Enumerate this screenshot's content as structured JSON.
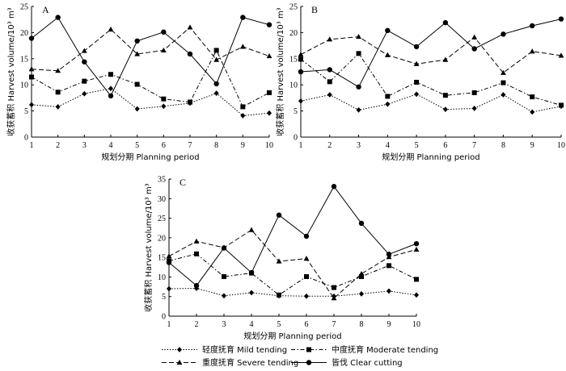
{
  "chart_data": [
    {
      "type": "line",
      "panel": "A",
      "x": [
        1,
        2,
        3,
        4,
        5,
        6,
        7,
        8,
        9,
        10
      ],
      "xlabel": "规划分期  Planning period",
      "ylabel": "收获蓄积 Harvest volume/10³ m³",
      "xlim": [
        1,
        10
      ],
      "ylim": [
        0,
        25
      ],
      "yticks": [
        0,
        5,
        10,
        15,
        20,
        25
      ],
      "series": [
        {
          "key": "mild",
          "values": [
            6.2,
            5.8,
            8.3,
            9.3,
            5.4,
            5.9,
            6.5,
            8.4,
            4.1,
            4.6
          ]
        },
        {
          "key": "moderate",
          "values": [
            11.5,
            8.6,
            10.7,
            12.0,
            10.1,
            7.3,
            6.7,
            16.6,
            5.8,
            8.5
          ]
        },
        {
          "key": "severe",
          "values": [
            13.0,
            12.7,
            16.5,
            20.6,
            15.9,
            16.6,
            21.0,
            14.8,
            17.3,
            15.5
          ]
        },
        {
          "key": "clear",
          "values": [
            18.9,
            22.9,
            14.4,
            7.9,
            18.4,
            20.1,
            15.9,
            10.2,
            22.9,
            21.5
          ]
        }
      ]
    },
    {
      "type": "line",
      "panel": "B",
      "x": [
        1,
        2,
        3,
        4,
        5,
        6,
        7,
        8,
        9,
        10
      ],
      "xlabel": "规划分期  Planning period",
      "ylabel": "收获蓄积 Harvest volume/10³ m³",
      "xlim": [
        1,
        10
      ],
      "ylim": [
        0,
        25
      ],
      "yticks": [
        0,
        5,
        10,
        15,
        20,
        25
      ],
      "series": [
        {
          "key": "mild",
          "values": [
            6.9,
            8.1,
            5.2,
            6.3,
            8.2,
            5.3,
            5.5,
            8.1,
            4.8,
            5.9
          ]
        },
        {
          "key": "moderate",
          "values": [
            14.9,
            10.6,
            16.0,
            7.8,
            10.5,
            8.0,
            8.5,
            10.4,
            7.7,
            6.1
          ]
        },
        {
          "key": "severe",
          "values": [
            15.8,
            18.7,
            19.2,
            15.7,
            14.0,
            14.8,
            19.1,
            12.3,
            16.4,
            15.6
          ]
        },
        {
          "key": "clear",
          "values": [
            12.5,
            12.9,
            9.6,
            20.4,
            17.3,
            21.9,
            16.9,
            19.7,
            21.3,
            22.6
          ]
        }
      ]
    },
    {
      "type": "line",
      "panel": "C",
      "x": [
        1,
        2,
        3,
        4,
        5,
        6,
        7,
        8,
        9,
        10
      ],
      "xlabel": "规划分期  Planning period",
      "ylabel": "收获蓄积 Harvest volume/10³ m³",
      "xlim": [
        1,
        10
      ],
      "ylim": [
        0,
        35
      ],
      "yticks": [
        0,
        5,
        10,
        15,
        20,
        25,
        30,
        35
      ],
      "series": [
        {
          "key": "mild",
          "values": [
            7.0,
            7.1,
            5.2,
            6.0,
            5.2,
            5.1,
            5.1,
            5.7,
            6.4,
            5.4
          ]
        },
        {
          "key": "moderate",
          "values": [
            14.1,
            15.9,
            10.1,
            11.0,
            5.4,
            10.1,
            7.3,
            10.1,
            12.9,
            9.4
          ]
        },
        {
          "key": "severe",
          "values": [
            15.3,
            19.1,
            17.5,
            22.0,
            14.0,
            14.7,
            4.6,
            10.8,
            15.1,
            17.0
          ]
        },
        {
          "key": "clear",
          "values": [
            13.7,
            7.8,
            17.4,
            11.1,
            25.8,
            20.4,
            33.1,
            23.7,
            15.8,
            18.5
          ]
        }
      ]
    }
  ],
  "legend": [
    {
      "key": "mild",
      "label": "轻度抚育  Mild tending"
    },
    {
      "key": "moderate",
      "label": "中度抚育  Moderate tending"
    },
    {
      "key": "severe",
      "label": "重度抚育  Severe tending"
    },
    {
      "key": "clear",
      "label": "皆伐  Clear cutting"
    }
  ],
  "series_styles": {
    "mild": {
      "color": "#000000",
      "dash": "1.5,1.8",
      "marker": "diamond"
    },
    "moderate": {
      "color": "#000000",
      "dash": "5,2.5,1.5,2.5",
      "marker": "square"
    },
    "severe": {
      "color": "#000000",
      "dash": "6,3",
      "marker": "triangle"
    },
    "clear": {
      "color": "#000000",
      "dash": "",
      "marker": "circle"
    }
  }
}
